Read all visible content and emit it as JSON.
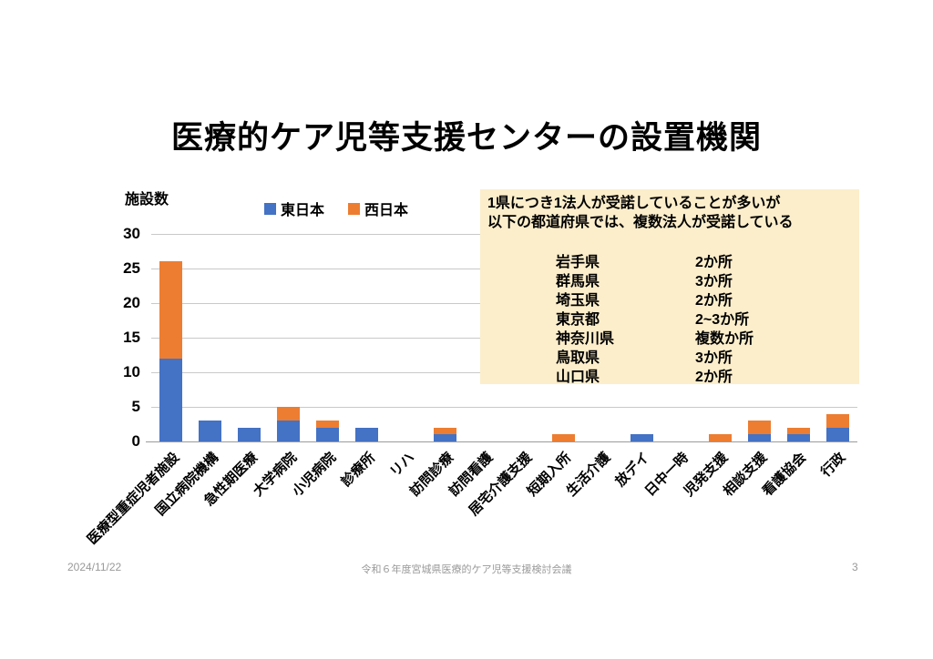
{
  "slide": {
    "title": "医療的ケア児等支援センターの設置機関",
    "footer": {
      "date": "2024/11/22",
      "center_text": "令和６年度宮城県医療的ケア児等支援検討会議",
      "page_number": "3"
    }
  },
  "chart_data": {
    "type": "bar",
    "stacked": true,
    "title": "",
    "xlabel": "",
    "ylabel": "施設数",
    "ylim": [
      0,
      30
    ],
    "yticks": [
      0,
      5,
      10,
      15,
      20,
      25,
      30
    ],
    "grid": true,
    "legend_position": "top",
    "categories": [
      "医療型重症児者施設",
      "国立病院機構",
      "急性期医療",
      "大学病院",
      "小児病院",
      "診療所",
      "リハ",
      "訪問診療",
      "訪問看護",
      "居宅介護支援",
      "短期入所",
      "生活介護",
      "放デイ",
      "日中一時",
      "児発支援",
      "相談支援",
      "看護協会",
      "行政"
    ],
    "series": [
      {
        "name": "東日本",
        "color": "#4472C4",
        "values": [
          12,
          3,
          2,
          3,
          2,
          2,
          0,
          1,
          0,
          0,
          0,
          0,
          1,
          0,
          0,
          1,
          1,
          2
        ]
      },
      {
        "name": "西日本",
        "color": "#ED7D31",
        "values": [
          14,
          0,
          0,
          2,
          1,
          0,
          0,
          1,
          0,
          0,
          1,
          0,
          0,
          0,
          1,
          2,
          1,
          2
        ]
      }
    ]
  },
  "note_box": {
    "background_color": "#FCEECB",
    "line1": "1県につき1法人が受諾していることが多いが",
    "line2": "以下の都道府県では、複数法人が受諾している",
    "rows": [
      {
        "pref": "岩手県",
        "count": "2か所"
      },
      {
        "pref": "群馬県",
        "count": "3か所"
      },
      {
        "pref": "埼玉県",
        "count": "2か所"
      },
      {
        "pref": "東京都",
        "count": "2~3か所"
      },
      {
        "pref": "神奈川県",
        "count": "複数か所"
      },
      {
        "pref": "鳥取県",
        "count": "3か所"
      },
      {
        "pref": "山口県",
        "count": "2か所"
      }
    ]
  }
}
